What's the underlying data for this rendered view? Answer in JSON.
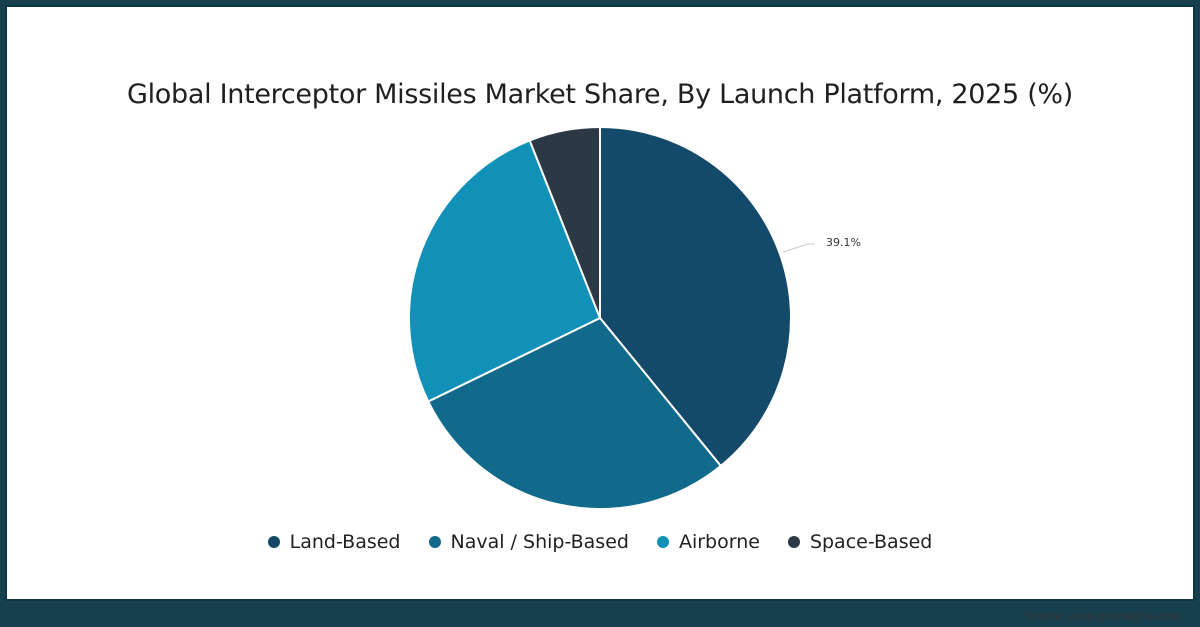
{
  "chart_data": {
    "type": "pie",
    "title": "Global Interceptor Missiles Market Share, By Launch Platform, 2025 (%)",
    "categories": [
      "Land-Based",
      "Naval / Ship-Based",
      "Airborne",
      "Space-Based"
    ],
    "values": [
      39.1,
      28.7,
      26.2,
      6.0
    ],
    "colors": [
      "#134a6a",
      "#11698c",
      "#1190b8",
      "#2c3844"
    ],
    "data_labels": [
      {
        "category": "Land-Based",
        "text": "39.1%"
      }
    ],
    "legend_position": "bottom"
  },
  "title": "Global Interceptor Missiles Market Share, By Launch Platform, 2025 (%)",
  "legend": [
    {
      "label": "Land-Based",
      "color": "#134a6a"
    },
    {
      "label": "Naval / Ship-Based",
      "color": "#11698c"
    },
    {
      "label": "Airborne",
      "color": "#1190b8"
    },
    {
      "label": "Space-Based",
      "color": "#2c3844"
    }
  ],
  "data_label": "39.1%",
  "source": "Source: www.gminsights.com"
}
